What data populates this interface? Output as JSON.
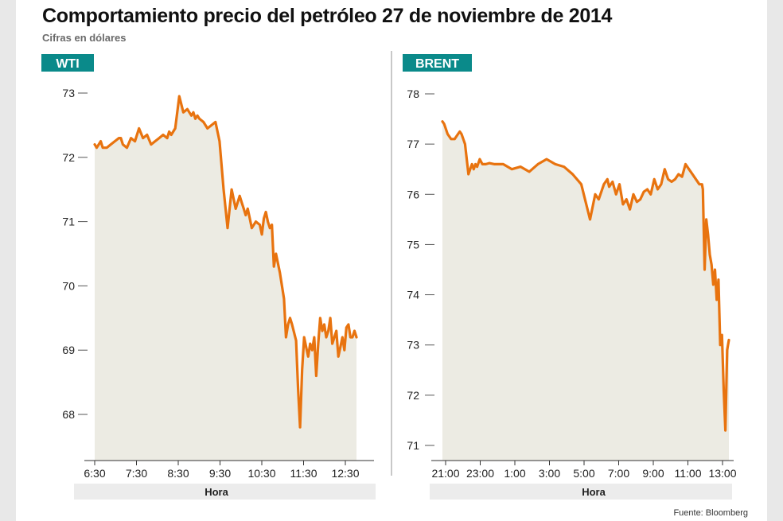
{
  "header": {
    "title": "Comportamiento precio del petróleo 27 de noviembre de 2014",
    "subtitle": "Cifras en dólares",
    "source": "Fuente: Bloomberg"
  },
  "colors": {
    "line": "#e8730f",
    "fill": "#ecebe3",
    "badge": "#0a8a8a",
    "axis_band": "#ececec"
  },
  "chart_data": [
    {
      "type": "area",
      "label": "WTI",
      "xlabel": "Hora",
      "ylabel": "",
      "ylim": [
        67.3,
        73.2
      ],
      "yticks": [
        68,
        69,
        70,
        71,
        72,
        73
      ],
      "x_ticks": [
        "6:30",
        "7:30",
        "8:30",
        "9:30",
        "10:30",
        "11:30",
        "12:30"
      ],
      "xlim": [
        0,
        6.5
      ],
      "series": [
        {
          "x": [
            0,
            0.05,
            0.1,
            0.15,
            0.2,
            0.3,
            0.4,
            0.5,
            0.6,
            0.65,
            0.7,
            0.8,
            0.9,
            1.0,
            1.1,
            1.2,
            1.3,
            1.4,
            1.5,
            1.6,
            1.7,
            1.8,
            1.85,
            1.9,
            2.0,
            2.1,
            2.2,
            2.3,
            2.35,
            2.4,
            2.45,
            2.5,
            2.55,
            2.6,
            2.7,
            2.8,
            2.9,
            3.0,
            3.1,
            3.2,
            3.3,
            3.4,
            3.5,
            3.55,
            3.6,
            3.65,
            3.7,
            3.75,
            3.8,
            3.85,
            3.9,
            4.0,
            4.1,
            4.15,
            4.2,
            4.25,
            4.3,
            4.35,
            4.4,
            4.45,
            4.5,
            4.6,
            4.7,
            4.75,
            4.8,
            4.85,
            4.9,
            5.0,
            5.05,
            5.1,
            5.15,
            5.2,
            5.25,
            5.3,
            5.35,
            5.4,
            5.45,
            5.5,
            5.55,
            5.6,
            5.65,
            5.7,
            5.75,
            5.8,
            5.85,
            5.9,
            5.95,
            6.0,
            6.05,
            6.1,
            6.15,
            6.2,
            6.25,
            6.3,
            6.35,
            6.4,
            6.45,
            6.5
          ],
          "y": [
            72.2,
            72.15,
            72.2,
            72.25,
            72.15,
            72.15,
            72.2,
            72.25,
            72.3,
            72.3,
            72.2,
            72.15,
            72.3,
            72.25,
            72.45,
            72.3,
            72.35,
            72.2,
            72.25,
            72.3,
            72.35,
            72.3,
            72.4,
            72.35,
            72.45,
            72.95,
            72.7,
            72.75,
            72.7,
            72.65,
            72.7,
            72.6,
            72.65,
            72.6,
            72.55,
            72.45,
            72.5,
            72.55,
            72.25,
            71.5,
            70.9,
            71.5,
            71.2,
            71.3,
            71.4,
            71.3,
            71.2,
            71.1,
            71.2,
            71.05,
            70.9,
            71.0,
            70.95,
            70.8,
            71.05,
            71.15,
            71.0,
            70.9,
            70.95,
            70.3,
            70.5,
            70.2,
            69.8,
            69.2,
            69.4,
            69.5,
            69.4,
            69.15,
            68.4,
            67.8,
            68.7,
            69.2,
            69.05,
            68.9,
            69.1,
            69.0,
            69.2,
            68.6,
            69.1,
            69.5,
            69.3,
            69.4,
            69.2,
            69.3,
            69.5,
            69.1,
            69.2,
            69.3,
            68.9,
            69.05,
            69.2,
            69.0,
            69.35,
            69.4,
            69.2,
            69.2,
            69.3,
            69.2
          ]
        }
      ]
    },
    {
      "type": "area",
      "label": "BRENT",
      "xlabel": "Hora",
      "ylabel": "",
      "ylim": [
        70.8,
        78.2
      ],
      "yticks": [
        71,
        72,
        73,
        74,
        75,
        76,
        77,
        78
      ],
      "x_ticks": [
        "21:00",
        "23:00",
        "1:00",
        "3:00",
        "5:00",
        "7:00",
        "9:00",
        "11:00",
        "13:00"
      ],
      "xlim": [
        0,
        16.5
      ],
      "series": [
        {
          "x": [
            0,
            0.1,
            0.3,
            0.5,
            0.7,
            0.9,
            1.0,
            1.1,
            1.3,
            1.5,
            1.7,
            1.8,
            1.9,
            2.0,
            2.15,
            2.3,
            2.5,
            2.7,
            3.0,
            3.5,
            4.0,
            4.5,
            5.0,
            5.5,
            6.0,
            6.5,
            7.0,
            7.5,
            8.0,
            8.5,
            8.8,
            9.0,
            9.3,
            9.5,
            9.6,
            9.8,
            10.0,
            10.2,
            10.4,
            10.6,
            10.8,
            11.0,
            11.2,
            11.4,
            11.6,
            11.8,
            12.0,
            12.2,
            12.4,
            12.6,
            12.8,
            13.0,
            13.2,
            13.4,
            13.6,
            13.8,
            14.0,
            14.2,
            14.4,
            14.6,
            14.8,
            14.95,
            15.0,
            15.1,
            15.2,
            15.3,
            15.4,
            15.5,
            15.6,
            15.7,
            15.8,
            15.9,
            16.0,
            16.1,
            16.2,
            16.3,
            16.4,
            16.5
          ],
          "y": [
            77.45,
            77.4,
            77.2,
            77.1,
            77.1,
            77.2,
            77.25,
            77.2,
            77.0,
            76.4,
            76.6,
            76.5,
            76.6,
            76.55,
            76.7,
            76.6,
            76.6,
            76.62,
            76.6,
            76.6,
            76.5,
            76.55,
            76.45,
            76.6,
            76.7,
            76.6,
            76.55,
            76.4,
            76.2,
            75.5,
            76.0,
            75.9,
            76.2,
            76.3,
            76.15,
            76.25,
            76.0,
            76.2,
            75.8,
            75.9,
            75.7,
            76.0,
            75.85,
            75.9,
            76.05,
            76.1,
            76.0,
            76.3,
            76.1,
            76.2,
            76.5,
            76.3,
            76.25,
            76.3,
            76.4,
            76.35,
            76.6,
            76.5,
            76.4,
            76.3,
            76.2,
            76.2,
            76.1,
            74.5,
            75.5,
            75.2,
            74.8,
            74.6,
            74.2,
            74.5,
            73.9,
            74.3,
            73.0,
            73.2,
            72.1,
            71.3,
            72.9,
            73.1
          ]
        }
      ]
    }
  ]
}
